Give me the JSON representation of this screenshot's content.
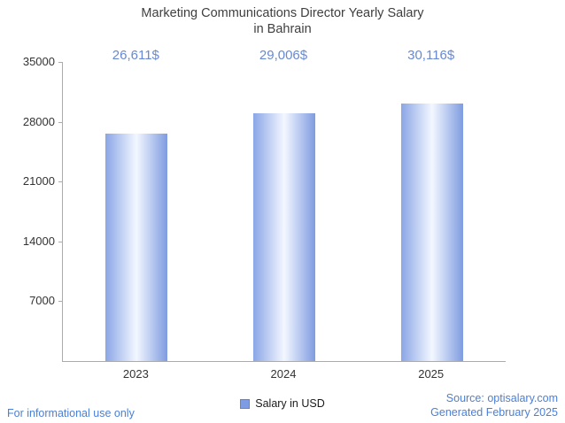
{
  "title": "Marketing Communications Director Yearly Salary\nin Bahrain",
  "chart_data": {
    "type": "bar",
    "title": "Marketing Communications Director Yearly Salary in Bahrain",
    "categories": [
      "2023",
      "2024",
      "2025"
    ],
    "values": [
      26611,
      29006,
      30116
    ],
    "value_labels": [
      "26,611$",
      "29,006$",
      "30,116$"
    ],
    "series": [
      {
        "name": "Salary in USD",
        "values": [
          26611,
          29006,
          30116
        ]
      }
    ],
    "xlabel": "",
    "ylabel": "",
    "ylim": [
      0,
      35000
    ],
    "yticks": [
      7000,
      14000,
      21000,
      28000,
      35000
    ],
    "ytick_labels": [
      "7000",
      "14000",
      "21000",
      "28000",
      "35000"
    ],
    "grid": false,
    "legend_position": "bottom",
    "bar_color_edge_left": "#8ba6e6",
    "bar_color_center": "#f3f7ff",
    "bar_color_edge_right": "#7f9ce0",
    "value_label_color": "#6889d2",
    "accent_color": "#4b7fd6"
  },
  "legend": {
    "label": "Salary in USD"
  },
  "footer": {
    "left": "For informational use only",
    "source": "Source: optisalary.com",
    "generated": "Generated February 2025"
  }
}
